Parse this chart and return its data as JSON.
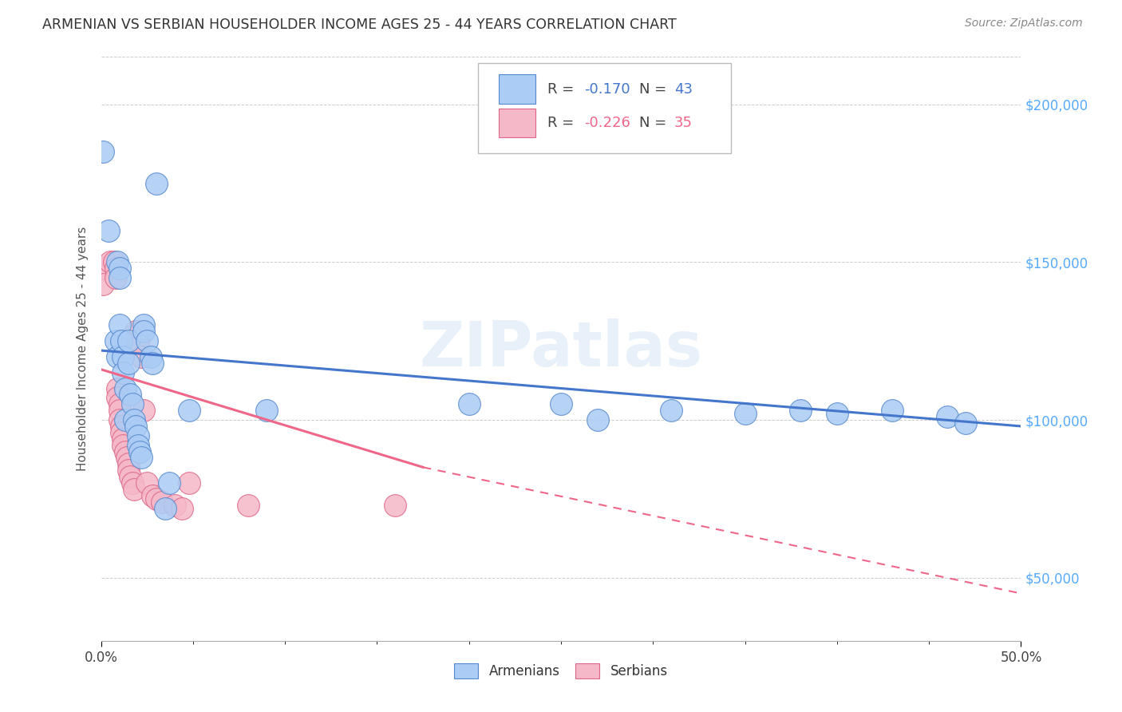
{
  "title": "ARMENIAN VS SERBIAN HOUSEHOLDER INCOME AGES 25 - 44 YEARS CORRELATION CHART",
  "source": "Source: ZipAtlas.com",
  "ylabel": "Householder Income Ages 25 - 44 years",
  "xlim": [
    0.0,
    0.5
  ],
  "ylim": [
    30000,
    215000
  ],
  "yticks": [
    50000,
    100000,
    150000,
    200000
  ],
  "ytick_labels": [
    "$50,000",
    "$100,000",
    "$150,000",
    "$200,000"
  ],
  "xticks_major": [
    0.0,
    0.5
  ],
  "xtick_major_labels": [
    "0.0%",
    "50.0%"
  ],
  "xticks_minor": [
    0.05,
    0.1,
    0.15,
    0.2,
    0.25,
    0.3,
    0.35,
    0.4,
    0.45
  ],
  "armenian_color": "#aaccf5",
  "serbian_color": "#f5b8c8",
  "armenian_edge_color": "#5588cc",
  "serbian_edge_color": "#dd6688",
  "armenian_line_color": "#4477cc",
  "serbian_line_color": "#ee6688",
  "armenian_scatter": [
    [
      0.001,
      185000
    ],
    [
      0.004,
      160000
    ],
    [
      0.008,
      125000
    ],
    [
      0.009,
      120000
    ],
    [
      0.009,
      150000
    ],
    [
      0.01,
      148000
    ],
    [
      0.01,
      145000
    ],
    [
      0.01,
      130000
    ],
    [
      0.011,
      125000
    ],
    [
      0.012,
      120000
    ],
    [
      0.012,
      115000
    ],
    [
      0.013,
      110000
    ],
    [
      0.013,
      100000
    ],
    [
      0.015,
      125000
    ],
    [
      0.015,
      118000
    ],
    [
      0.016,
      108000
    ],
    [
      0.017,
      105000
    ],
    [
      0.018,
      100000
    ],
    [
      0.019,
      98000
    ],
    [
      0.02,
      95000
    ],
    [
      0.02,
      92000
    ],
    [
      0.021,
      90000
    ],
    [
      0.022,
      88000
    ],
    [
      0.023,
      130000
    ],
    [
      0.023,
      128000
    ],
    [
      0.025,
      125000
    ],
    [
      0.027,
      120000
    ],
    [
      0.028,
      118000
    ],
    [
      0.03,
      175000
    ],
    [
      0.035,
      72000
    ],
    [
      0.037,
      80000
    ],
    [
      0.048,
      103000
    ],
    [
      0.09,
      103000
    ],
    [
      0.2,
      105000
    ],
    [
      0.25,
      105000
    ],
    [
      0.27,
      100000
    ],
    [
      0.31,
      103000
    ],
    [
      0.35,
      102000
    ],
    [
      0.38,
      103000
    ],
    [
      0.4,
      102000
    ],
    [
      0.43,
      103000
    ],
    [
      0.46,
      101000
    ],
    [
      0.47,
      99000
    ]
  ],
  "serbian_scatter": [
    [
      0.001,
      148000
    ],
    [
      0.001,
      143000
    ],
    [
      0.005,
      150000
    ],
    [
      0.007,
      150000
    ],
    [
      0.008,
      148000
    ],
    [
      0.008,
      145000
    ],
    [
      0.009,
      110000
    ],
    [
      0.009,
      107000
    ],
    [
      0.01,
      105000
    ],
    [
      0.01,
      103000
    ],
    [
      0.01,
      100000
    ],
    [
      0.011,
      98000
    ],
    [
      0.011,
      96000
    ],
    [
      0.012,
      94000
    ],
    [
      0.012,
      92000
    ],
    [
      0.013,
      90000
    ],
    [
      0.014,
      88000
    ],
    [
      0.015,
      86000
    ],
    [
      0.015,
      84000
    ],
    [
      0.016,
      82000
    ],
    [
      0.017,
      80000
    ],
    [
      0.018,
      78000
    ],
    [
      0.019,
      128000
    ],
    [
      0.02,
      125000
    ],
    [
      0.022,
      120000
    ],
    [
      0.023,
      103000
    ],
    [
      0.025,
      80000
    ],
    [
      0.028,
      76000
    ],
    [
      0.03,
      75000
    ],
    [
      0.033,
      74000
    ],
    [
      0.04,
      73000
    ],
    [
      0.044,
      72000
    ],
    [
      0.048,
      80000
    ],
    [
      0.08,
      73000
    ],
    [
      0.16,
      73000
    ]
  ],
  "armenian_line": {
    "x0": 0.0,
    "y0": 122000,
    "x1": 0.5,
    "y1": 98000
  },
  "serbian_line_solid": {
    "x0": 0.0,
    "y0": 116000,
    "x1": 0.175,
    "y1": 85000
  },
  "serbian_line_dashed": {
    "x0": 0.175,
    "y0": 85000,
    "x1": 0.5,
    "y1": 45000
  },
  "watermark": "ZIPatlas",
  "background_color": "#ffffff",
  "grid_color": "#cccccc",
  "legend_box": {
    "r_arm": "-0.170",
    "n_arm": "43",
    "r_serb": "-0.226",
    "n_serb": "35"
  }
}
